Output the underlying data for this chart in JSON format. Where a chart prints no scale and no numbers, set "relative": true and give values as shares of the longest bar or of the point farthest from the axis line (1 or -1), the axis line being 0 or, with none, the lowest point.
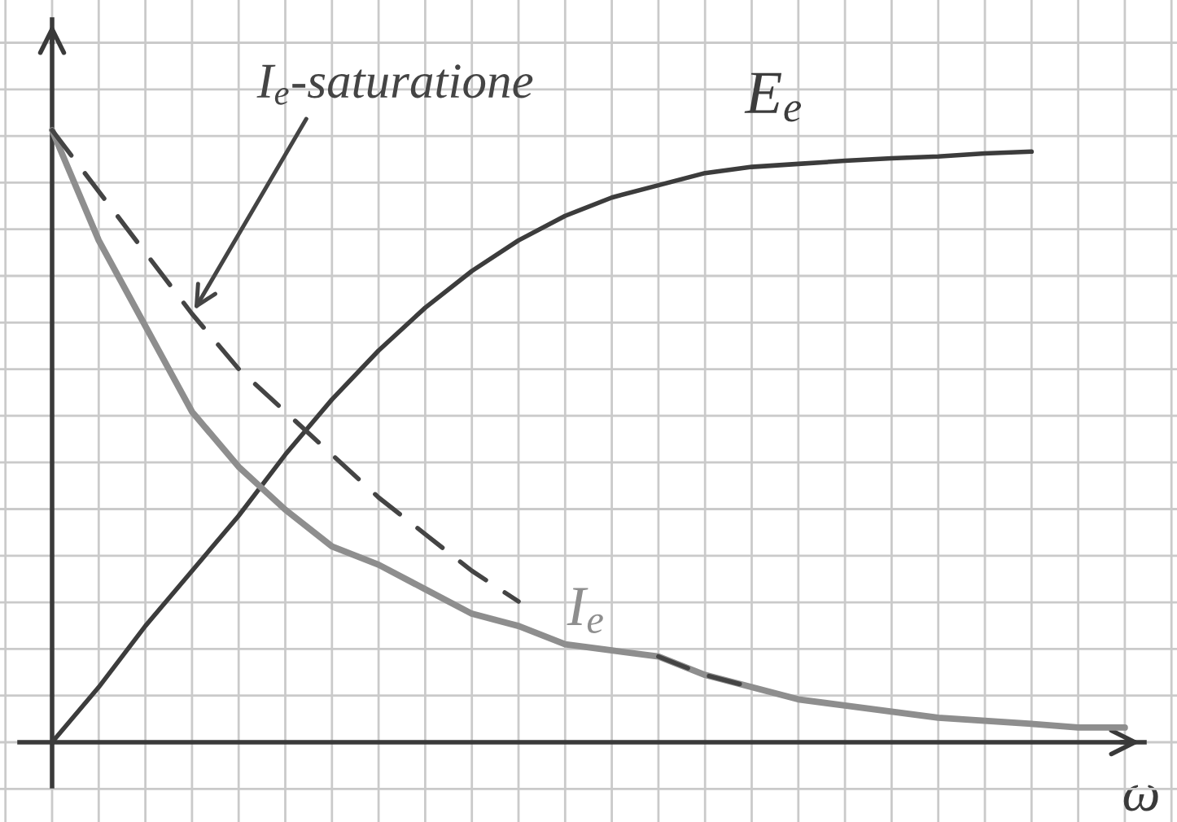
{
  "chart_data": {
    "type": "line",
    "relative": true,
    "xlabel": "ω",
    "grid": true,
    "categories": [
      null,
      null,
      null,
      null,
      null,
      null,
      null,
      null,
      null,
      null,
      null,
      null,
      null,
      null,
      null,
      null,
      null,
      null,
      null,
      null,
      null,
      null,
      null,
      null
    ],
    "series": [
      {
        "name": "E$_{e}$",
        "color": "#3c3c3c",
        "line_style": "solid",
        "values": [
          0,
          0.09,
          0.19,
          0.28,
          0.37,
          0.47,
          0.56,
          0.64,
          0.71,
          0.77,
          0.82,
          0.86,
          0.89,
          0.91,
          0.93,
          0.94,
          0.945,
          0.95,
          0.954,
          0.957,
          0.962,
          0.965,
          null,
          null
        ]
      },
      {
        "name": "I$_{e}$",
        "color": "#8e8e8e",
        "line_style": "solid",
        "values": [
          1.0,
          0.82,
          0.68,
          0.54,
          0.45,
          0.38,
          0.32,
          0.29,
          0.25,
          0.21,
          0.19,
          0.16,
          0.15,
          0.14,
          0.11,
          0.09,
          0.07,
          0.06,
          0.05,
          0.04,
          0.035,
          0.03,
          0.024,
          0.024
        ]
      },
      {
        "name": "I$_{e}$-saturatione",
        "color": "#444444",
        "line_style": "dashed",
        "values": [
          1.0,
          0.9,
          0.8,
          0.7,
          0.61,
          0.54,
          0.47,
          0.4,
          0.34,
          0.28,
          0.23,
          null,
          null,
          0.14,
          0.11,
          0.09,
          null,
          null,
          null,
          null,
          null,
          null,
          null,
          null
        ]
      }
    ]
  }
}
